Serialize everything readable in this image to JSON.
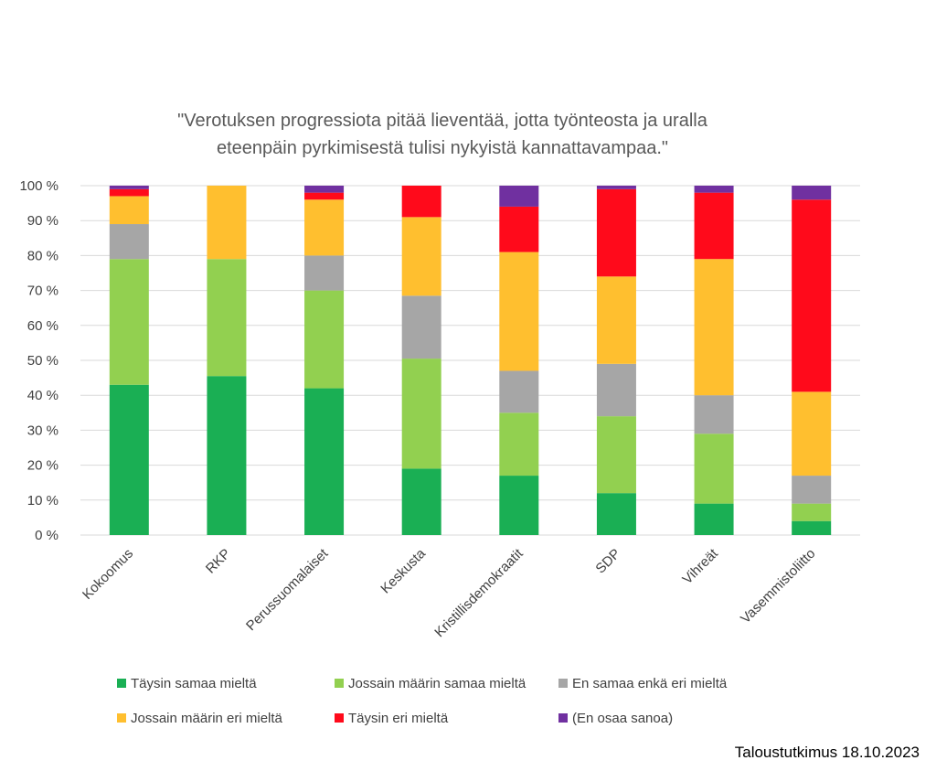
{
  "chart_data": {
    "type": "bar",
    "stacked": true,
    "title_lines": [
      "\"Verotuksen progressiota pitää lieventää, jotta työnteosta ja uralla",
      "eteenpäin pyrkimisestä tulisi nykyistä kannattavampaa.\""
    ],
    "categories": [
      "Kokoomus",
      "RKP",
      "Perussuomalaiset",
      "Keskusta",
      "Kristillisdemokraatit",
      "SDP",
      "Vihreät",
      "Vasemmistoliitto"
    ],
    "yticks": [
      "0 %",
      "10 %",
      "20 %",
      "30 %",
      "40 %",
      "50 %",
      "60 %",
      "70 %",
      "80 %",
      "90 %",
      "100 %"
    ],
    "ylim": [
      0,
      100
    ],
    "grid": true,
    "legend_position": "bottom",
    "series": [
      {
        "name": "Täysin samaa mieltä",
        "color": "#1aaf54",
        "values": [
          43,
          45.5,
          42,
          19,
          17,
          12,
          9,
          4
        ]
      },
      {
        "name": "Jossain määrin samaa mieltä",
        "color": "#92d050",
        "values": [
          36,
          33.5,
          28,
          31.5,
          18,
          22,
          20,
          5
        ]
      },
      {
        "name": "En samaa enkä eri mieltä",
        "color": "#a6a6a6",
        "values": [
          10,
          0,
          10,
          18,
          12,
          15,
          11,
          8
        ]
      },
      {
        "name": "Jossain määrin eri mieltä",
        "color": "#ffbf2f",
        "values": [
          8,
          21,
          16,
          22.5,
          34,
          25,
          39,
          24
        ]
      },
      {
        "name": "Täysin eri mieltä",
        "color": "#ff0a1b",
        "values": [
          2,
          0,
          2,
          9,
          13,
          25,
          19,
          55
        ]
      },
      {
        "name": "(En osaa sanoa)",
        "color": "#7030a0",
        "values": [
          1,
          0,
          2,
          0,
          6,
          1,
          2,
          4
        ]
      }
    ]
  },
  "source": "Taloustutkimus 18.10.2023"
}
